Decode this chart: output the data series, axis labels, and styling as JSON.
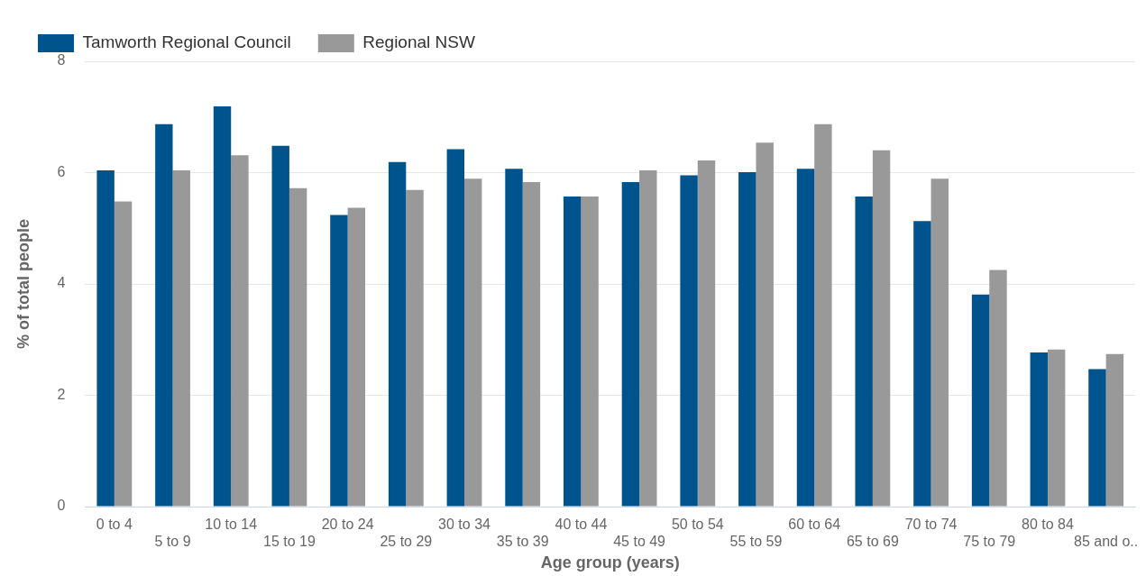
{
  "chart_data": {
    "type": "bar",
    "xlabel": "Age group (years)",
    "ylabel": "% of total people",
    "categories": [
      "0 to 4",
      "5 to 9",
      "10 to 14",
      "15 to 19",
      "20 to 24",
      "25 to 29",
      "30 to 34",
      "35 to 39",
      "40 to 44",
      "45 to 49",
      "50 to 54",
      "55 to 59",
      "60 to 64",
      "65 to 69",
      "70 to 74",
      "75 to 79",
      "80 to 84",
      "85 and o.."
    ],
    "series": [
      {
        "name": "Tamworth Regional Council",
        "color": "#00548e",
        "values": [
          6.04,
          6.87,
          7.19,
          6.48,
          5.24,
          6.19,
          6.42,
          6.07,
          5.57,
          5.83,
          5.95,
          6.01,
          6.07,
          5.57,
          5.13,
          3.81,
          2.77,
          2.47
        ]
      },
      {
        "name": "Regional NSW",
        "color": "#999999",
        "values": [
          5.48,
          6.04,
          6.31,
          5.72,
          5.37,
          5.69,
          5.89,
          5.83,
          5.57,
          6.04,
          6.22,
          6.54,
          6.87,
          6.4,
          5.89,
          4.25,
          2.82,
          2.74
        ]
      }
    ],
    "ylim": [
      0,
      8
    ],
    "yticks": [
      0,
      2,
      4,
      6,
      8
    ],
    "grid": "y",
    "legend": "top left"
  }
}
